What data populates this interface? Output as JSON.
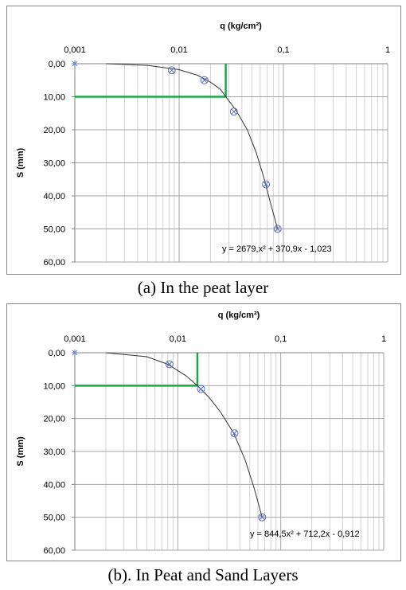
{
  "chart_data": [
    {
      "type": "scatter",
      "caption": "(a)  In the peat layer",
      "xlabel": "q (kg/cm²)",
      "ylabel": "S (mm)",
      "xscale": "log",
      "xlim": [
        0.001,
        1
      ],
      "ylim": [
        0,
        60
      ],
      "y_reversed": true,
      "x_tick_labels": [
        "0,001",
        "0,01",
        "0,1",
        "1"
      ],
      "y_tick_labels": [
        "0,00",
        "10,00",
        "20,00",
        "30,00",
        "40,00",
        "50,00",
        "60,00"
      ],
      "grid": true,
      "marker_at_origin": {
        "x": 0.001,
        "y": 0
      },
      "points": [
        {
          "x": 0.0085,
          "y": 2.0
        },
        {
          "x": 0.0175,
          "y": 5.0
        },
        {
          "x": 0.0335,
          "y": 14.5
        },
        {
          "x": 0.068,
          "y": 36.5
        },
        {
          "x": 0.088,
          "y": 50.0
        }
      ],
      "trendline": [
        {
          "x": 0.002,
          "y": 0.0
        },
        {
          "x": 0.005,
          "y": 0.5
        },
        {
          "x": 0.01,
          "y": 1.8
        },
        {
          "x": 0.015,
          "y": 3.5
        },
        {
          "x": 0.02,
          "y": 5.6
        },
        {
          "x": 0.025,
          "y": 7.8
        },
        {
          "x": 0.028,
          "y": 10.0
        },
        {
          "x": 0.035,
          "y": 14.0
        },
        {
          "x": 0.045,
          "y": 20.0
        },
        {
          "x": 0.055,
          "y": 27.0
        },
        {
          "x": 0.065,
          "y": 34.5
        },
        {
          "x": 0.075,
          "y": 42.0
        },
        {
          "x": 0.088,
          "y": 50.0
        }
      ],
      "guide_lines": {
        "x": 0.028,
        "y": 10.0,
        "color": "#1aa64a"
      },
      "equation": "y = 2679,x² + 370,9x - 1,023"
    },
    {
      "type": "scatter",
      "caption": "(b). In Peat and Sand Layers",
      "xlabel": "q (kg/cm²)",
      "ylabel": "S (mm)",
      "xscale": "log",
      "xlim": [
        0.001,
        1
      ],
      "ylim": [
        0,
        60
      ],
      "y_reversed": true,
      "x_tick_labels": [
        "0,001",
        "0,01",
        "0,1",
        "1"
      ],
      "y_tick_labels": [
        "0,00",
        "10,00",
        "20,00",
        "30,00",
        "40,00",
        "50,00",
        "60,00"
      ],
      "grid": true,
      "marker_at_origin": {
        "x": 0.001,
        "y": 0
      },
      "points": [
        {
          "x": 0.0083,
          "y": 3.5
        },
        {
          "x": 0.0168,
          "y": 11.0
        },
        {
          "x": 0.0355,
          "y": 24.5
        },
        {
          "x": 0.066,
          "y": 50.0
        }
      ],
      "trendline": [
        {
          "x": 0.002,
          "y": 0.0
        },
        {
          "x": 0.005,
          "y": 1.2
        },
        {
          "x": 0.008,
          "y": 3.5
        },
        {
          "x": 0.012,
          "y": 7.0
        },
        {
          "x": 0.0155,
          "y": 10.0
        },
        {
          "x": 0.02,
          "y": 13.5
        },
        {
          "x": 0.026,
          "y": 18.0
        },
        {
          "x": 0.035,
          "y": 24.5
        },
        {
          "x": 0.045,
          "y": 32.5
        },
        {
          "x": 0.055,
          "y": 41.0
        },
        {
          "x": 0.066,
          "y": 50.0
        }
      ],
      "guide_lines": {
        "x": 0.0155,
        "y": 10.0,
        "color": "#1aa64a"
      },
      "equation": "y = 844,5x² + 712,2x - 0,912"
    }
  ]
}
